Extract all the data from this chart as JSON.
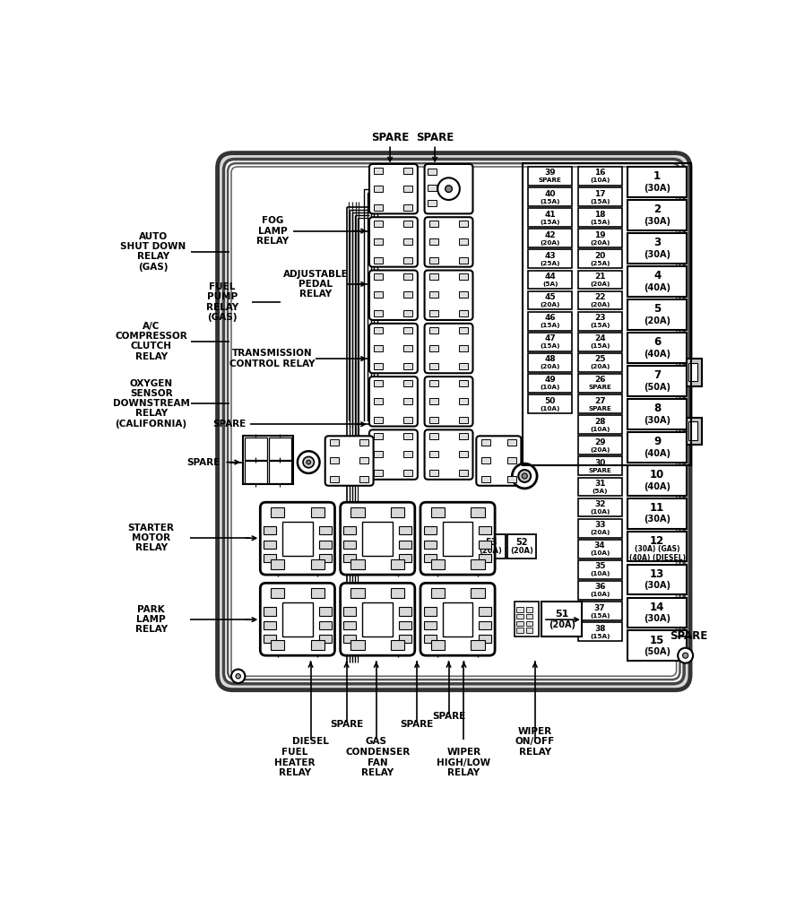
{
  "bg_color": "#ffffff",
  "fuse_col1": [
    {
      "num": "39",
      "amp": "SPARE"
    },
    {
      "num": "40",
      "amp": "15A"
    },
    {
      "num": "41",
      "amp": "15A"
    },
    {
      "num": "42",
      "amp": "20A"
    },
    {
      "num": "43",
      "amp": "25A"
    },
    {
      "num": "44",
      "amp": "5A"
    },
    {
      "num": "45",
      "amp": "20A"
    },
    {
      "num": "46",
      "amp": "15A"
    },
    {
      "num": "47",
      "amp": "15A"
    },
    {
      "num": "48",
      "amp": "20A"
    },
    {
      "num": "49",
      "amp": "10A"
    },
    {
      "num": "50",
      "amp": "10A"
    }
  ],
  "fuse_col2": [
    {
      "num": "16",
      "amp": "10A"
    },
    {
      "num": "17",
      "amp": "15A"
    },
    {
      "num": "18",
      "amp": "15A"
    },
    {
      "num": "19",
      "amp": "20A"
    },
    {
      "num": "20",
      "amp": "25A"
    },
    {
      "num": "21",
      "amp": "20A"
    },
    {
      "num": "22",
      "amp": "20A"
    },
    {
      "num": "23",
      "amp": "15A"
    },
    {
      "num": "24",
      "amp": "15A"
    },
    {
      "num": "25",
      "amp": "20A"
    },
    {
      "num": "26",
      "amp": "SPARE"
    },
    {
      "num": "27",
      "amp": "SPARE"
    },
    {
      "num": "28",
      "amp": "10A"
    },
    {
      "num": "29",
      "amp": "20A"
    },
    {
      "num": "30",
      "amp": "SPARE"
    },
    {
      "num": "31",
      "amp": "5A"
    },
    {
      "num": "32",
      "amp": "10A"
    },
    {
      "num": "33",
      "amp": "20A"
    },
    {
      "num": "34",
      "amp": "10A"
    },
    {
      "num": "35",
      "amp": "10A"
    },
    {
      "num": "36",
      "amp": "10A"
    },
    {
      "num": "37",
      "amp": "15A"
    },
    {
      "num": "38",
      "amp": "15A"
    }
  ],
  "fuse_col3": [
    {
      "num": "1",
      "amp": "(30A)"
    },
    {
      "num": "2",
      "amp": "(30A)"
    },
    {
      "num": "3",
      "amp": "(30A)"
    },
    {
      "num": "4",
      "amp": "(40A)"
    },
    {
      "num": "5",
      "amp": "(20A)"
    },
    {
      "num": "6",
      "amp": "(40A)"
    },
    {
      "num": "7",
      "amp": "(50A)"
    },
    {
      "num": "8",
      "amp": "(30A)"
    },
    {
      "num": "9",
      "amp": "(40A)"
    },
    {
      "num": "10",
      "amp": "(40A)"
    },
    {
      "num": "11",
      "amp": "(30A)"
    },
    {
      "num": "12",
      "amp": "(30A) (GAS)\n(40A) (DIESEL)"
    },
    {
      "num": "13",
      "amp": "(30A)"
    },
    {
      "num": "14",
      "amp": "(30A)"
    },
    {
      "num": "15",
      "amp": "(50A)"
    }
  ]
}
